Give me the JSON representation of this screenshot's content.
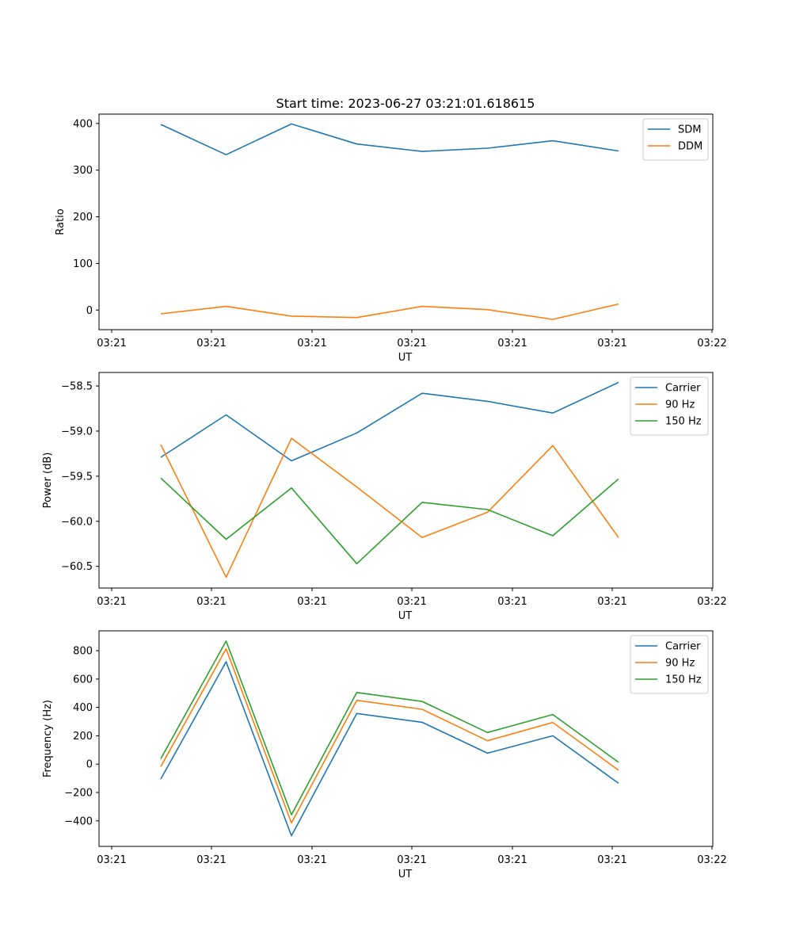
{
  "title": "Start time: 2023-06-27 03:21:01.618615",
  "chart_data": [
    {
      "type": "line",
      "xlabel": "UT",
      "ylabel": "Ratio",
      "x_tick_labels": [
        "03:21",
        "03:21",
        "03:21",
        "03:21",
        "03:21",
        "03:21",
        "03:22"
      ],
      "y_ticks": [
        0,
        100,
        200,
        300,
        400
      ],
      "y_tick_labels": [
        "0",
        "100",
        "200",
        "300",
        "400"
      ],
      "ylim": [
        -42,
        420
      ],
      "legend_position": "top-right",
      "series": [
        {
          "name": "SDM",
          "color": "#1f77b4",
          "values": [
            398,
            333,
            399,
            356,
            340,
            347,
            363,
            341
          ]
        },
        {
          "name": "DDM",
          "color": "#ff7f0e",
          "values": [
            -8,
            8,
            -13,
            -16,
            8,
            1,
            -20,
            13
          ]
        }
      ]
    },
    {
      "type": "line",
      "xlabel": "UT",
      "ylabel": "Power (dB)",
      "x_tick_labels": [
        "03:21",
        "03:21",
        "03:21",
        "03:21",
        "03:21",
        "03:21",
        "03:22"
      ],
      "y_ticks": [
        -60.5,
        -60.0,
        -59.5,
        -59.0,
        -58.5
      ],
      "y_tick_labels": [
        "−60.5",
        "−60.0",
        "−59.5",
        "−59.0",
        "−58.5"
      ],
      "ylim": [
        -60.74,
        -58.35
      ],
      "legend_position": "top-right",
      "series": [
        {
          "name": "Carrier",
          "color": "#1f77b4",
          "values": [
            -59.29,
            -58.82,
            -59.33,
            -59.02,
            -58.58,
            -58.67,
            -58.8,
            -58.46
          ]
        },
        {
          "name": "90 Hz",
          "color": "#ff7f0e",
          "values": [
            -59.15,
            -60.62,
            -59.08,
            -59.62,
            -60.18,
            -59.9,
            -59.16,
            -60.18
          ]
        },
        {
          "name": "150 Hz",
          "color": "#2ca02c",
          "values": [
            -59.52,
            -60.2,
            -59.63,
            -60.47,
            -59.79,
            -59.87,
            -60.16,
            -59.53
          ]
        }
      ]
    },
    {
      "type": "line",
      "xlabel": "UT",
      "ylabel": "Frequency (Hz)",
      "x_tick_labels": [
        "03:21",
        "03:21",
        "03:21",
        "03:21",
        "03:21",
        "03:21",
        "03:22"
      ],
      "y_ticks": [
        -400,
        -200,
        0,
        200,
        400,
        600,
        800
      ],
      "y_tick_labels": [
        "−400",
        "−200",
        "0",
        "200",
        "400",
        "600",
        "800"
      ],
      "ylim": [
        -580,
        940
      ],
      "legend_position": "top-right",
      "series": [
        {
          "name": "Carrier",
          "color": "#1f77b4",
          "values": [
            -105,
            722,
            -505,
            357,
            295,
            77,
            200,
            -135
          ]
        },
        {
          "name": "90 Hz",
          "color": "#ff7f0e",
          "values": [
            -17,
            813,
            -415,
            450,
            387,
            165,
            294,
            -43
          ]
        },
        {
          "name": "150 Hz",
          "color": "#2ca02c",
          "values": [
            38,
            868,
            -357,
            505,
            442,
            223,
            350,
            13
          ]
        }
      ]
    }
  ]
}
